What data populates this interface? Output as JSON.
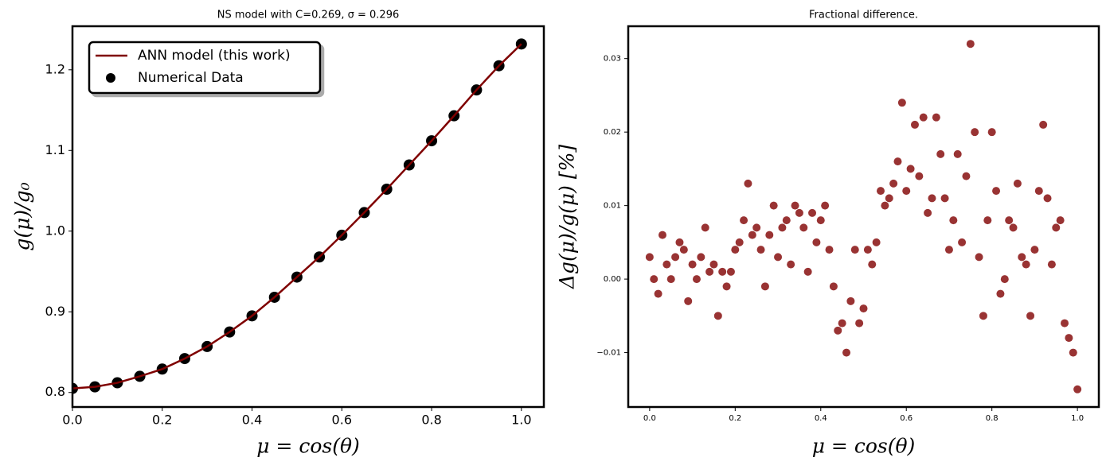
{
  "chart_data": [
    {
      "type": "line",
      "title": "NS model with C=0.269, σ = 0.296",
      "x_label": "μ = cos(θ)",
      "y_label": "g(μ)/g₀",
      "x": [
        0.0,
        0.05,
        0.1,
        0.15,
        0.2,
        0.25,
        0.3,
        0.35,
        0.4,
        0.45,
        0.5,
        0.55,
        0.6,
        0.65,
        0.7,
        0.75,
        0.8,
        0.85,
        0.9,
        0.95,
        1.0
      ],
      "series": [
        {
          "name": "ANN model (this work)",
          "kind": "line",
          "color": "#7f0000",
          "values": [
            0.805,
            0.807,
            0.812,
            0.82,
            0.829,
            0.842,
            0.857,
            0.875,
            0.895,
            0.918,
            0.943,
            0.968,
            0.995,
            1.023,
            1.052,
            1.082,
            1.112,
            1.143,
            1.175,
            1.205,
            1.232
          ]
        },
        {
          "name": "Numerical Data",
          "kind": "scatter",
          "color": "#000000",
          "values": [
            0.805,
            0.807,
            0.812,
            0.82,
            0.829,
            0.842,
            0.857,
            0.875,
            0.895,
            0.918,
            0.943,
            0.968,
            0.995,
            1.023,
            1.052,
            1.082,
            1.112,
            1.143,
            1.175,
            1.205,
            1.232
          ]
        }
      ],
      "xlim": [
        0,
        1.05
      ],
      "xticks": [
        {
          "value": 0,
          "label": "0.0"
        },
        0.2,
        0.4,
        0.6,
        0.8,
        {
          "value": 1,
          "label": "1.0"
        }
      ],
      "ylim": [
        0.782,
        1.254
      ],
      "yticks": [
        0.8,
        0.9,
        {
          "value": 1,
          "label": "1.0"
        },
        1.1,
        1.2
      ],
      "legend": "upper left",
      "grid": false
    },
    {
      "type": "scatter",
      "title": "Fractional difference.",
      "x_label": "μ = cos(θ)",
      "y_label": "Δg(μ)/g(μ)  [%]",
      "color": "#7f0000",
      "x": [
        0.0,
        0.01,
        0.02,
        0.03,
        0.04,
        0.05,
        0.06,
        0.07,
        0.08,
        0.09,
        0.1,
        0.11,
        0.12,
        0.13,
        0.14,
        0.15,
        0.16,
        0.17,
        0.18,
        0.19,
        0.2,
        0.21,
        0.22,
        0.23,
        0.24,
        0.25,
        0.26,
        0.27,
        0.28,
        0.29,
        0.3,
        0.31,
        0.32,
        0.33,
        0.34,
        0.35,
        0.36,
        0.37,
        0.38,
        0.39,
        0.4,
        0.41,
        0.42,
        0.43,
        0.44,
        0.45,
        0.46,
        0.47,
        0.48,
        0.49,
        0.5,
        0.51,
        0.52,
        0.53,
        0.54,
        0.55,
        0.56,
        0.57,
        0.58,
        0.59,
        0.6,
        0.61,
        0.62,
        0.63,
        0.64,
        0.65,
        0.66,
        0.67,
        0.68,
        0.69,
        0.7,
        0.71,
        0.72,
        0.73,
        0.74,
        0.75,
        0.76,
        0.77,
        0.78,
        0.79,
        0.8,
        0.81,
        0.82,
        0.83,
        0.84,
        0.85,
        0.86,
        0.87,
        0.88,
        0.89,
        0.9,
        0.91,
        0.92,
        0.93,
        0.94,
        0.95,
        0.96,
        0.97,
        0.98,
        0.99,
        1.0
      ],
      "values": [
        0.003,
        0.0,
        -0.002,
        0.006,
        0.002,
        0.0,
        0.003,
        0.005,
        0.004,
        -0.003,
        0.002,
        0.0,
        0.003,
        0.007,
        0.001,
        0.002,
        -0.005,
        0.001,
        -0.001,
        0.001,
        0.004,
        0.005,
        0.008,
        0.013,
        0.006,
        0.007,
        0.004,
        -0.001,
        0.006,
        0.01,
        0.003,
        0.007,
        0.008,
        0.002,
        0.01,
        0.009,
        0.007,
        0.001,
        0.009,
        0.005,
        0.008,
        0.01,
        0.004,
        -0.001,
        -0.007,
        -0.006,
        -0.01,
        -0.003,
        0.004,
        -0.006,
        -0.004,
        0.004,
        0.002,
        0.005,
        0.012,
        0.01,
        0.011,
        0.013,
        0.016,
        0.024,
        0.012,
        0.015,
        0.021,
        0.014,
        0.022,
        0.009,
        0.011,
        0.022,
        0.017,
        0.011,
        0.004,
        0.008,
        0.017,
        0.005,
        0.014,
        0.032,
        0.02,
        0.003,
        -0.005,
        0.008,
        0.02,
        0.012,
        -0.002,
        0.0,
        0.008,
        0.007,
        0.013,
        0.003,
        0.002,
        -0.005,
        0.004,
        0.012,
        0.021,
        0.011,
        0.002,
        0.007,
        0.008,
        -0.006,
        -0.008,
        -0.01,
        -0.015
      ],
      "xlim": [
        -0.05,
        1.05
      ],
      "xticks": [
        {
          "value": 0,
          "label": "0.0"
        },
        0.2,
        0.4,
        0.6,
        0.8,
        {
          "value": 1,
          "label": "1.0"
        }
      ],
      "ylim": [
        -0.0174,
        0.0344
      ],
      "yticks": [
        {
          "value": -0.01,
          "label": "−0.01"
        },
        {
          "value": 0,
          "label": "0.00"
        },
        0.01,
        0.02,
        0.03
      ],
      "grid": false
    }
  ]
}
